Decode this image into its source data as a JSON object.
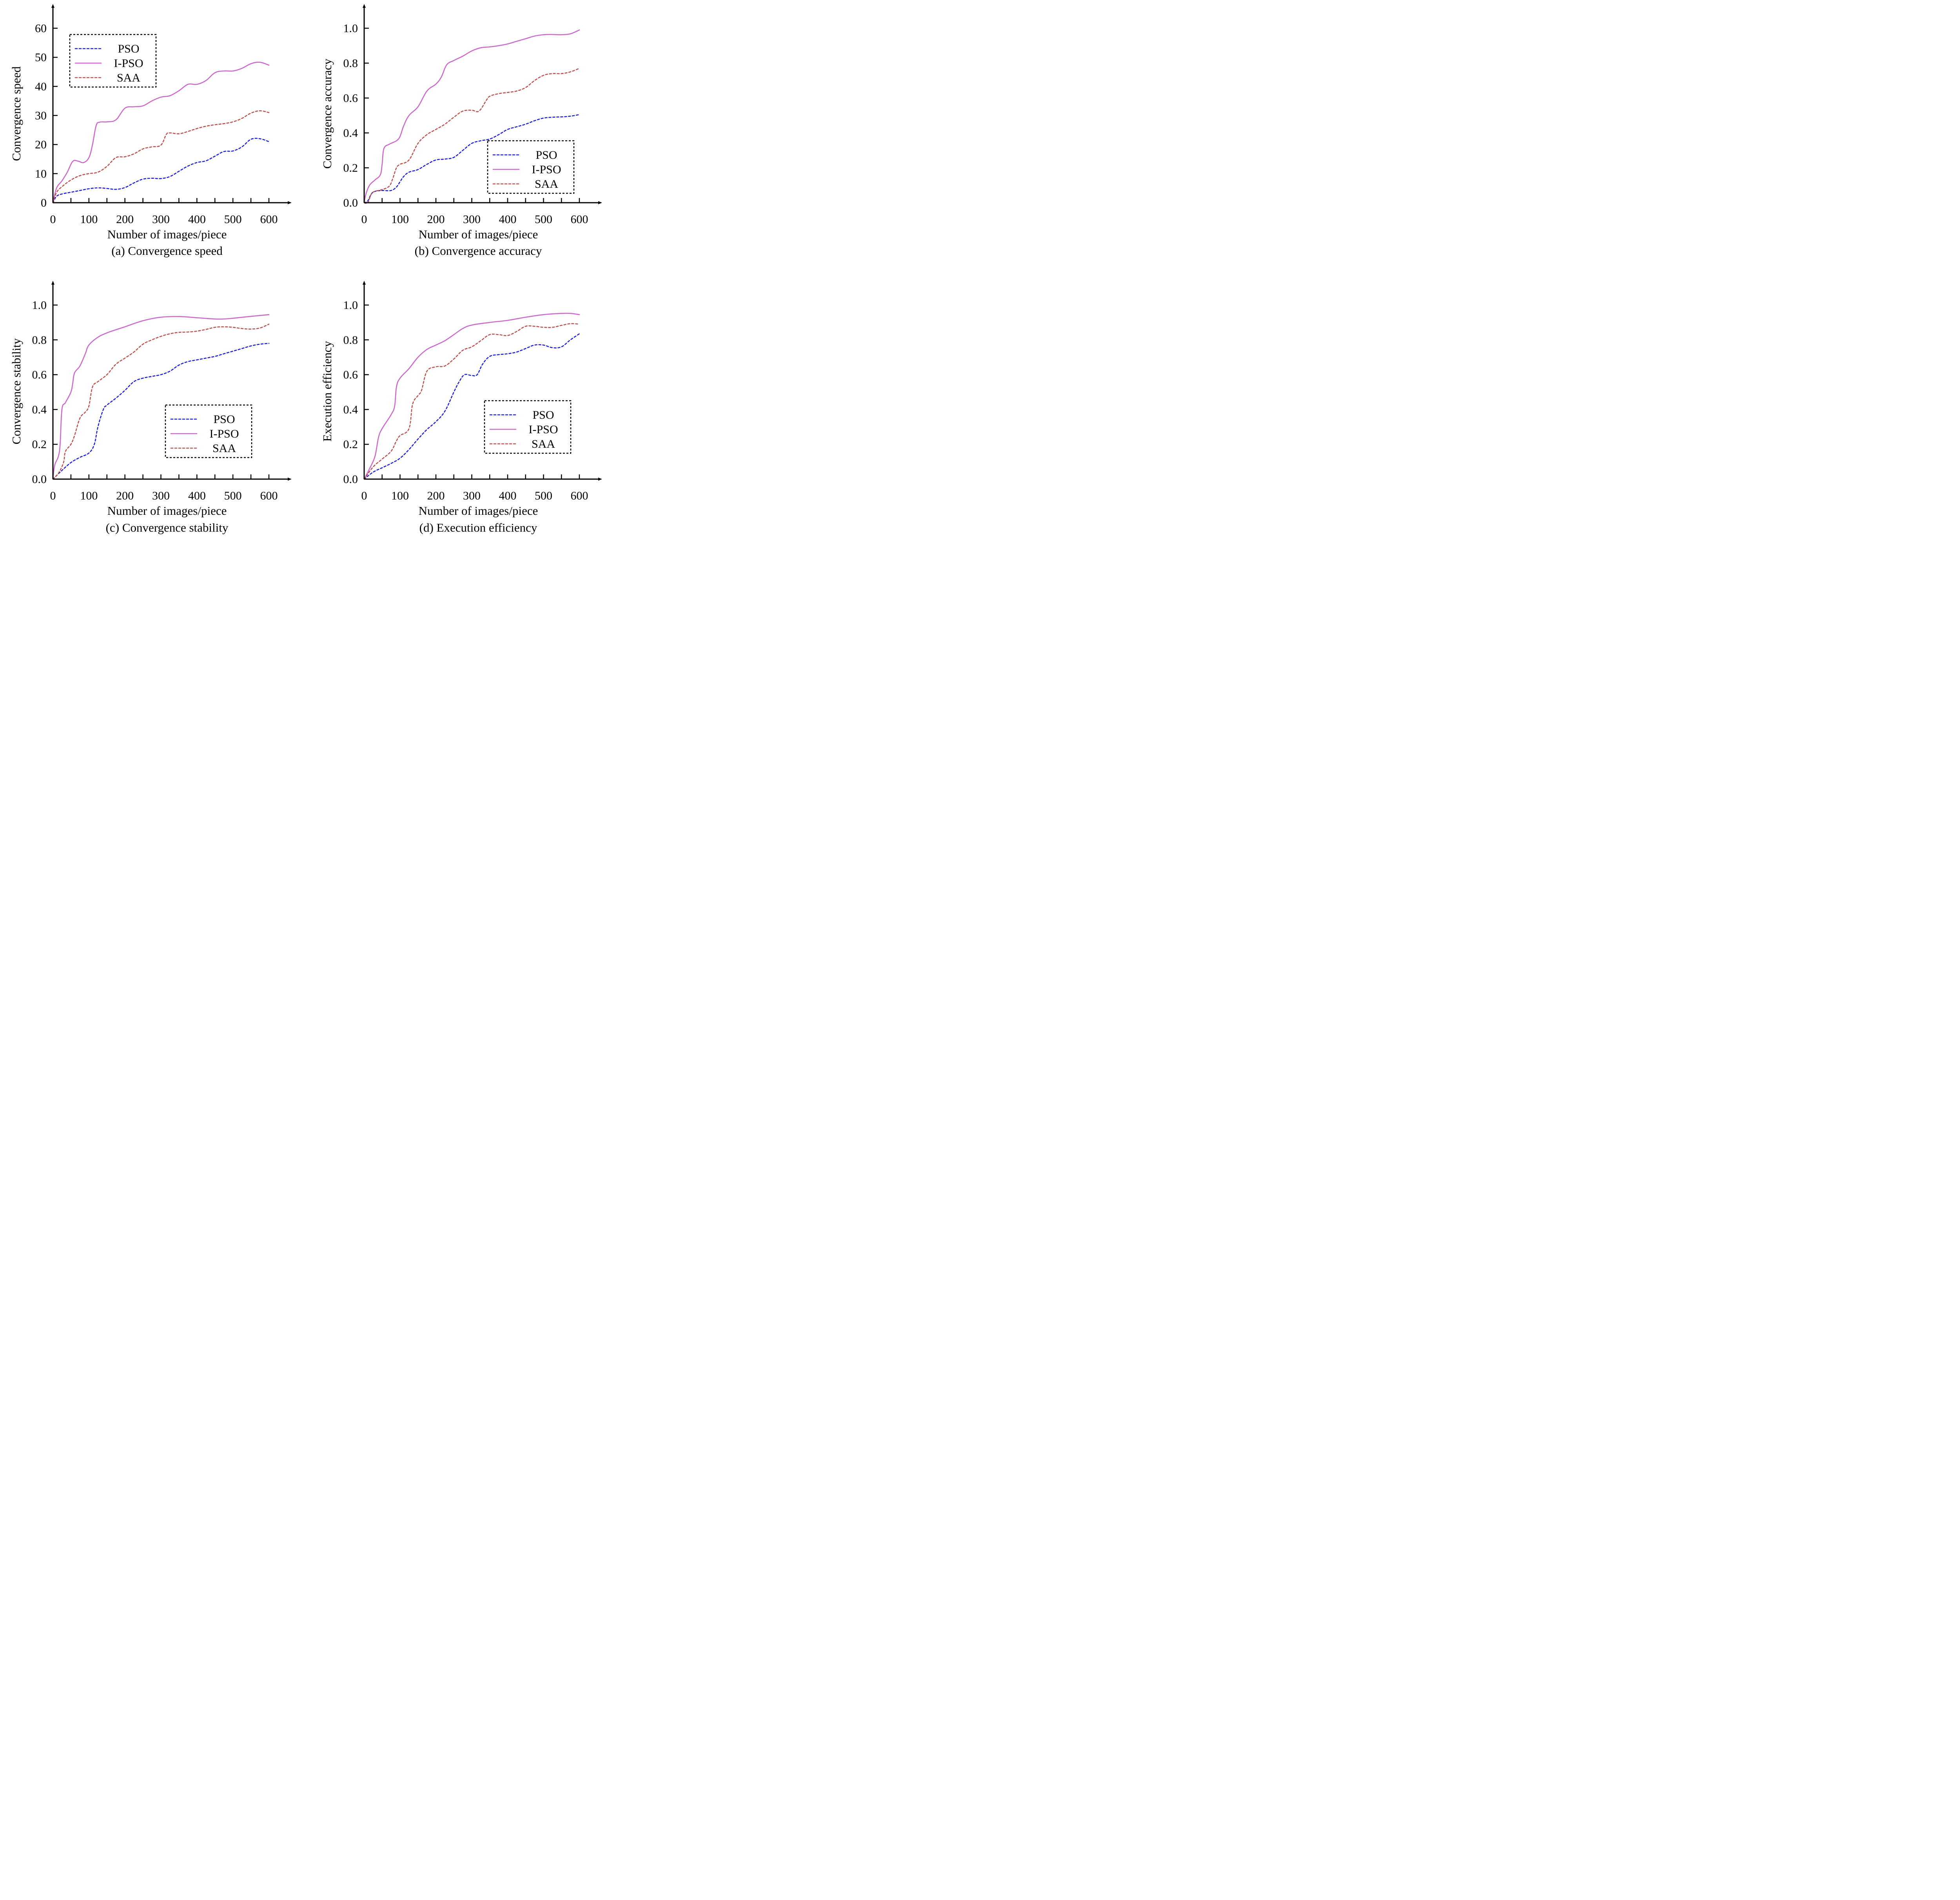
{
  "colors": {
    "PSO": "#1f1fe0",
    "I-PSO": "#cc66cc",
    "SAA": "#c0504d",
    "axis": "#000000"
  },
  "chart_data": [
    {
      "type": "line",
      "panel": "a",
      "caption": "(a) Convergence speed",
      "title": "",
      "xlabel": "Number of images/piece",
      "ylabel": "Convergence speed",
      "xlim": [
        0,
        600
      ],
      "ylim": [
        0,
        60
      ],
      "xticks": [
        0,
        100,
        200,
        300,
        400,
        500,
        600
      ],
      "xtick_labels": [
        "0",
        "100",
        "200",
        "300",
        "400",
        "500",
        "600"
      ],
      "xminor_step": 50,
      "yticks": [
        0,
        10,
        20,
        30,
        40,
        50,
        60
      ],
      "ytick_labels": [
        "0",
        "10",
        "20",
        "30",
        "40",
        "50",
        "60"
      ],
      "legend_position": "top-left",
      "legend": [
        "PSO",
        "I-PSO",
        "SAA"
      ],
      "grid": false,
      "series": [
        {
          "name": "PSO",
          "style": "dashed",
          "x": [
            0,
            10,
            25,
            50,
            75,
            100,
            125,
            150,
            175,
            200,
            225,
            250,
            275,
            300,
            325,
            350,
            375,
            400,
            425,
            450,
            475,
            500,
            525,
            550,
            575,
            600
          ],
          "y": [
            0,
            2.2,
            3.0,
            3.6,
            4.2,
            4.8,
            5.1,
            4.9,
            4.6,
            5.2,
            6.8,
            8.1,
            8.4,
            8.3,
            9.0,
            10.8,
            12.6,
            13.8,
            14.4,
            16.0,
            17.6,
            17.8,
            19.2,
            21.8,
            22.0,
            21.0
          ]
        },
        {
          "name": "I-PSO",
          "style": "solid",
          "x": [
            0,
            10,
            25,
            40,
            55,
            70,
            85,
            100,
            110,
            120,
            130,
            150,
            175,
            200,
            225,
            250,
            275,
            300,
            325,
            350,
            375,
            400,
            425,
            450,
            475,
            500,
            525,
            550,
            575,
            600
          ],
          "y": [
            0,
            5.0,
            7.5,
            10.5,
            14.2,
            14.3,
            13.8,
            15.5,
            20.0,
            26.5,
            27.7,
            27.8,
            28.5,
            32.5,
            33.0,
            33.3,
            35.0,
            36.3,
            36.8,
            38.5,
            40.7,
            40.7,
            42.0,
            44.7,
            45.3,
            45.3,
            46.2,
            47.8,
            48.3,
            47.3
          ]
        },
        {
          "name": "SAA",
          "style": "dashed",
          "x": [
            0,
            10,
            25,
            50,
            75,
            100,
            125,
            150,
            175,
            200,
            225,
            250,
            275,
            300,
            315,
            325,
            350,
            375,
            400,
            425,
            450,
            475,
            500,
            525,
            550,
            575,
            600
          ],
          "y": [
            0,
            3.5,
            5.5,
            7.8,
            9.3,
            10.0,
            10.5,
            12.5,
            15.5,
            15.8,
            16.8,
            18.5,
            19.2,
            19.8,
            23.5,
            24.0,
            23.7,
            24.5,
            25.5,
            26.3,
            26.8,
            27.2,
            27.8,
            29.0,
            30.8,
            31.6,
            31.0
          ]
        }
      ]
    },
    {
      "type": "line",
      "panel": "b",
      "caption": "(b) Convergence accuracy",
      "title": "",
      "xlabel": "Number of images/piece",
      "ylabel": "Convergence accuracy",
      "xlim": [
        0,
        600
      ],
      "ylim": [
        0,
        1.0
      ],
      "xticks": [
        0,
        100,
        200,
        300,
        400,
        500,
        600
      ],
      "xtick_labels": [
        "0",
        "100",
        "200",
        "300",
        "400",
        "500",
        "600"
      ],
      "xminor_step": 50,
      "yticks": [
        0,
        0.2,
        0.4,
        0.6,
        0.8,
        1.0
      ],
      "ytick_labels": [
        "0.0",
        "0.2",
        "0.4",
        "0.6",
        "0.8",
        "1.0"
      ],
      "legend_position": "lower-right",
      "legend": [
        "PSO",
        "I-PSO",
        "SAA"
      ],
      "grid": false,
      "series": [
        {
          "name": "PSO",
          "style": "dashed",
          "x": [
            0,
            10,
            20,
            30,
            50,
            75,
            90,
            100,
            110,
            125,
            150,
            175,
            200,
            225,
            250,
            275,
            300,
            325,
            350,
            375,
            400,
            425,
            450,
            475,
            500,
            525,
            550,
            575,
            600
          ],
          "y": [
            0,
            0.01,
            0.05,
            0.065,
            0.07,
            0.07,
            0.09,
            0.12,
            0.15,
            0.175,
            0.19,
            0.22,
            0.245,
            0.25,
            0.26,
            0.3,
            0.34,
            0.355,
            0.365,
            0.39,
            0.42,
            0.435,
            0.45,
            0.47,
            0.485,
            0.49,
            0.492,
            0.496,
            0.505
          ]
        },
        {
          "name": "I-PSO",
          "style": "solid",
          "x": [
            0,
            5,
            15,
            30,
            45,
            50,
            55,
            70,
            90,
            100,
            110,
            125,
            150,
            175,
            200,
            215,
            230,
            250,
            275,
            300,
            325,
            350,
            375,
            400,
            425,
            450,
            475,
            500,
            525,
            550,
            575,
            600
          ],
          "y": [
            0,
            0.05,
            0.1,
            0.13,
            0.16,
            0.22,
            0.31,
            0.335,
            0.355,
            0.38,
            0.44,
            0.5,
            0.55,
            0.64,
            0.68,
            0.72,
            0.79,
            0.815,
            0.84,
            0.87,
            0.888,
            0.893,
            0.9,
            0.91,
            0.925,
            0.94,
            0.955,
            0.963,
            0.964,
            0.963,
            0.968,
            0.99
          ]
        },
        {
          "name": "SAA",
          "style": "dashed",
          "x": [
            0,
            10,
            20,
            30,
            50,
            70,
            80,
            90,
            100,
            125,
            150,
            175,
            200,
            225,
            250,
            275,
            300,
            320,
            340,
            350,
            375,
            400,
            425,
            450,
            475,
            500,
            525,
            550,
            575,
            600
          ],
          "y": [
            0,
            0.0,
            0.05,
            0.065,
            0.075,
            0.095,
            0.14,
            0.2,
            0.22,
            0.245,
            0.34,
            0.39,
            0.42,
            0.45,
            0.49,
            0.525,
            0.53,
            0.525,
            0.585,
            0.61,
            0.625,
            0.632,
            0.64,
            0.66,
            0.7,
            0.73,
            0.74,
            0.74,
            0.75,
            0.77
          ]
        }
      ]
    },
    {
      "type": "line",
      "panel": "c",
      "caption": "(c) Convergence stability",
      "title": "",
      "xlabel": "Number of images/piece",
      "ylabel": "Convergence stability",
      "xlim": [
        0,
        600
      ],
      "ylim": [
        0,
        1.0
      ],
      "xticks": [
        0,
        100,
        200,
        300,
        400,
        500,
        600
      ],
      "xtick_labels": [
        "0",
        "100",
        "200",
        "300",
        "400",
        "500",
        "600"
      ],
      "xminor_step": 50,
      "yticks": [
        0,
        0.2,
        0.4,
        0.6,
        0.8,
        1.0
      ],
      "ytick_labels": [
        "0.0",
        "0.2",
        "0.4",
        "0.6",
        "0.8",
        "1.0"
      ],
      "legend_position": "lower-right",
      "legend": [
        "PSO",
        "I-PSO",
        "SAA"
      ],
      "grid": false,
      "series": [
        {
          "name": "PSO",
          "style": "dashed",
          "x": [
            0,
            25,
            50,
            75,
            100,
            115,
            125,
            140,
            150,
            175,
            200,
            225,
            250,
            275,
            300,
            325,
            350,
            375,
            400,
            425,
            450,
            475,
            500,
            525,
            550,
            575,
            600
          ],
          "y": [
            0,
            0.05,
            0.095,
            0.125,
            0.15,
            0.2,
            0.3,
            0.4,
            0.425,
            0.465,
            0.51,
            0.56,
            0.58,
            0.59,
            0.6,
            0.62,
            0.655,
            0.675,
            0.685,
            0.695,
            0.705,
            0.72,
            0.735,
            0.75,
            0.765,
            0.775,
            0.78
          ]
        },
        {
          "name": "I-PSO",
          "style": "solid",
          "x": [
            0,
            5,
            15,
            20,
            25,
            35,
            50,
            55,
            60,
            75,
            90,
            100,
            125,
            150,
            175,
            200,
            250,
            300,
            350,
            400,
            450,
            475,
            500,
            550,
            600
          ],
          "y": [
            0,
            0.08,
            0.13,
            0.2,
            0.4,
            0.44,
            0.5,
            0.55,
            0.61,
            0.65,
            0.72,
            0.77,
            0.815,
            0.84,
            0.858,
            0.875,
            0.91,
            0.93,
            0.934,
            0.927,
            0.92,
            0.92,
            0.924,
            0.935,
            0.945
          ]
        },
        {
          "name": "SAA",
          "style": "dashed",
          "x": [
            0,
            10,
            20,
            30,
            35,
            50,
            60,
            75,
            90,
            100,
            110,
            125,
            150,
            175,
            200,
            225,
            250,
            275,
            300,
            325,
            350,
            375,
            400,
            425,
            450,
            475,
            500,
            525,
            550,
            575,
            600
          ],
          "y": [
            0,
            0.02,
            0.05,
            0.1,
            0.16,
            0.2,
            0.25,
            0.35,
            0.385,
            0.42,
            0.53,
            0.56,
            0.6,
            0.66,
            0.695,
            0.73,
            0.775,
            0.8,
            0.82,
            0.835,
            0.843,
            0.845,
            0.85,
            0.86,
            0.872,
            0.875,
            0.872,
            0.865,
            0.862,
            0.868,
            0.89
          ]
        }
      ]
    },
    {
      "type": "line",
      "panel": "d",
      "caption": "(d) Execution efficiency",
      "title": "",
      "xlabel": "Number of images/piece",
      "ylabel": "Execution efficiency",
      "xlim": [
        0,
        600
      ],
      "ylim": [
        0,
        1.0
      ],
      "xticks": [
        0,
        100,
        200,
        300,
        400,
        500,
        600
      ],
      "xtick_labels": [
        "0",
        "100",
        "200",
        "300",
        "400",
        "500",
        "600"
      ],
      "xminor_step": 50,
      "yticks": [
        0,
        0.2,
        0.4,
        0.6,
        0.8,
        1.0
      ],
      "ytick_labels": [
        "0.0",
        "0.2",
        "0.4",
        "0.6",
        "0.8",
        "1.0"
      ],
      "legend_position": "lower-right",
      "legend": [
        "PSO",
        "I-PSO",
        "SAA"
      ],
      "grid": false,
      "series": [
        {
          "name": "PSO",
          "style": "dashed",
          "x": [
            0,
            25,
            50,
            75,
            100,
            125,
            150,
            175,
            200,
            225,
            250,
            265,
            280,
            300,
            315,
            330,
            350,
            375,
            400,
            425,
            450,
            475,
            500,
            525,
            550,
            575,
            600
          ],
          "y": [
            0,
            0.04,
            0.065,
            0.09,
            0.12,
            0.17,
            0.23,
            0.285,
            0.33,
            0.39,
            0.5,
            0.56,
            0.6,
            0.595,
            0.6,
            0.66,
            0.705,
            0.715,
            0.72,
            0.73,
            0.75,
            0.77,
            0.77,
            0.755,
            0.76,
            0.8,
            0.835
          ]
        },
        {
          "name": "I-PSO",
          "style": "solid",
          "x": [
            0,
            15,
            30,
            40,
            50,
            75,
            85,
            90,
            100,
            125,
            150,
            175,
            200,
            225,
            250,
            275,
            300,
            350,
            400,
            450,
            500,
            550,
            575,
            600
          ],
          "y": [
            0,
            0.06,
            0.13,
            0.24,
            0.29,
            0.37,
            0.42,
            0.53,
            0.58,
            0.635,
            0.7,
            0.745,
            0.77,
            0.795,
            0.83,
            0.865,
            0.885,
            0.9,
            0.912,
            0.93,
            0.945,
            0.952,
            0.952,
            0.945
          ]
        },
        {
          "name": "SAA",
          "style": "dashed",
          "x": [
            0,
            25,
            50,
            75,
            90,
            100,
            125,
            135,
            150,
            160,
            175,
            200,
            225,
            250,
            275,
            300,
            325,
            350,
            375,
            400,
            425,
            450,
            475,
            500,
            525,
            550,
            575,
            600
          ],
          "y": [
            0,
            0.07,
            0.115,
            0.16,
            0.22,
            0.25,
            0.29,
            0.43,
            0.48,
            0.51,
            0.62,
            0.645,
            0.65,
            0.69,
            0.74,
            0.76,
            0.795,
            0.83,
            0.83,
            0.825,
            0.848,
            0.878,
            0.878,
            0.872,
            0.872,
            0.883,
            0.893,
            0.89
          ]
        }
      ]
    }
  ]
}
